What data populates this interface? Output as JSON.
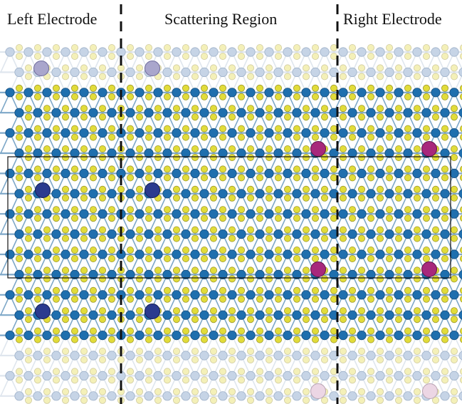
{
  "labels": {
    "left": "Left Electrode",
    "center": "Scattering Region",
    "right": "Right Electrode"
  },
  "colors": {
    "background": "#ffffff",
    "bond": "#7da7c8",
    "host_atom": "#1f6fae",
    "ligand_atom": "#e2dc3a",
    "ligand_atom_faded": "#f4f0b8",
    "host_atom_faded": "#c6d4e6",
    "dopant_blue": "#2b3b8f",
    "dopant_blue_faded": "#a9a6cc",
    "dopant_magenta": "#a8287c",
    "dopant_magenta_faded": "#ecd6e4",
    "divider": "#111111",
    "cell_outline": "#111111"
  }
}
